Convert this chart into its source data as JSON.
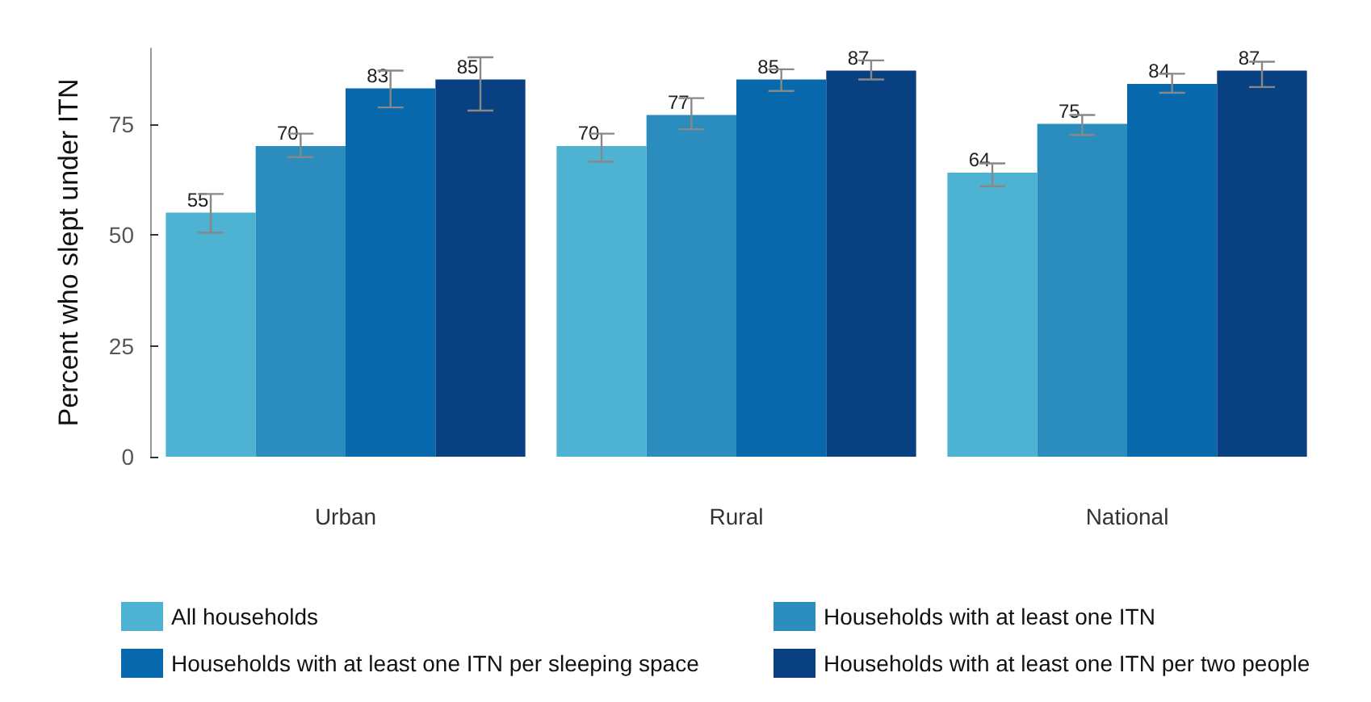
{
  "chart_data": {
    "type": "bar",
    "ylabel": "Percent who slept under ITN",
    "categories": [
      "Urban",
      "Rural",
      "National"
    ],
    "series": [
      {
        "name": "All households",
        "color": "#4eb3d3",
        "values": [
          55,
          70,
          64
        ],
        "errors": [
          [
            50.5,
            59.2
          ],
          [
            66.5,
            72.8
          ],
          [
            60.9,
            66.1
          ]
        ]
      },
      {
        "name": "Households with at least one ITN",
        "color": "#2b8cbe",
        "values": [
          70,
          77,
          75
        ],
        "errors": [
          [
            67.5,
            72.8
          ],
          [
            73.8,
            80.8
          ],
          [
            72.5,
            77
          ]
        ]
      },
      {
        "name": "Households with at least one ITN per sleeping space",
        "color": "#0868ac",
        "values": [
          83,
          85,
          84
        ],
        "errors": [
          [
            78.7,
            87
          ],
          [
            82.4,
            87.3
          ],
          [
            82,
            86.3
          ]
        ]
      },
      {
        "name": "Households with at least one ITN per two people",
        "color": "#084081",
        "values": [
          85,
          87,
          87
        ],
        "errors": [
          [
            78,
            90
          ],
          [
            85,
            89.3
          ],
          [
            83.3,
            89
          ]
        ]
      }
    ],
    "ylim": [
      0,
      92
    ],
    "yticks": [
      0,
      25,
      50,
      75
    ],
    "grid": false,
    "legend": "bottom",
    "data_labels": true
  }
}
